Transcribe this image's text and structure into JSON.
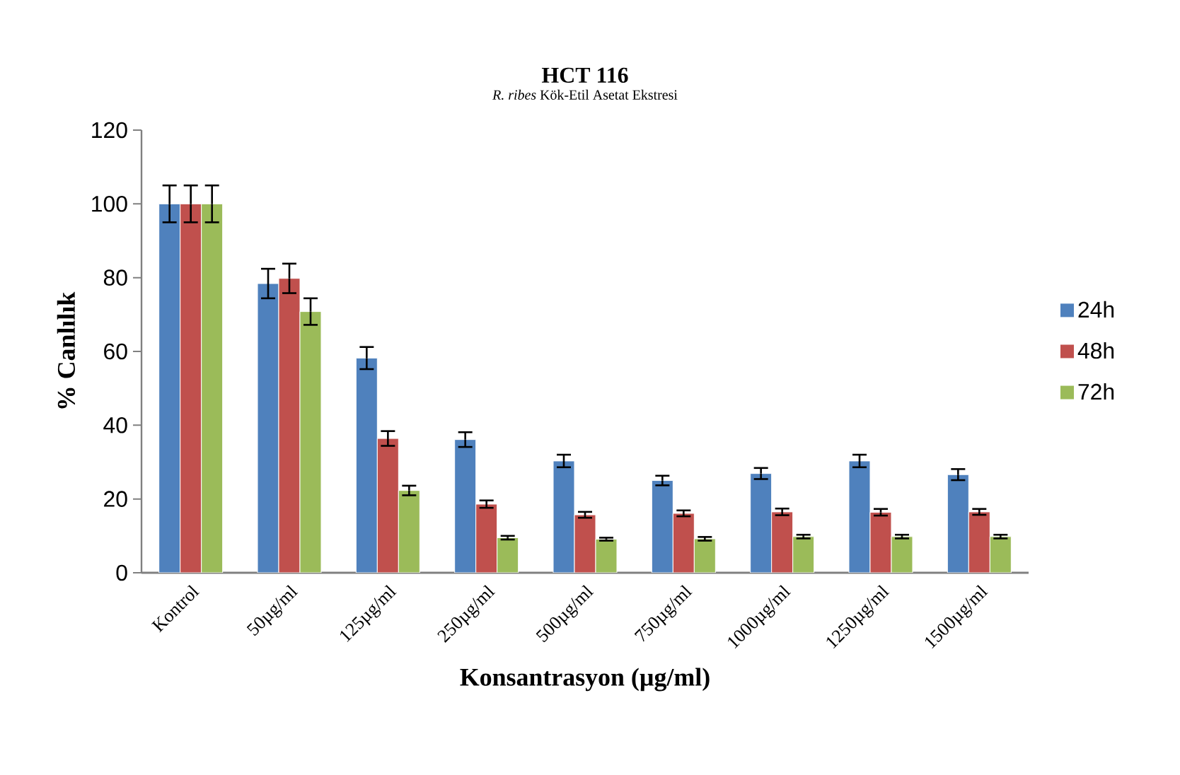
{
  "chart_data": {
    "type": "bar",
    "title": "HCT 116",
    "subtitle": "*R. ribes* Kök-Etil Asetat Ekstresi",
    "xlabel": "Konsantrasyon (µg/ml)",
    "ylabel": "% Canlılık",
    "categories": [
      "Kontrol",
      "50µg/ml",
      "125µg/ml",
      "250µg/ml",
      "500µg/ml",
      "750µg/ml",
      "1000µg/ml",
      "1250µg/ml",
      "1500µg/ml"
    ],
    "series": [
      {
        "name": "24h",
        "color": "#4f81bd",
        "values": [
          100,
          78.4,
          58.2,
          36.1,
          30.3,
          25.0,
          26.9,
          30.3,
          26.6
        ],
        "errors": [
          5,
          4,
          3,
          2,
          1.7,
          1.3,
          1.5,
          1.7,
          1.5
        ]
      },
      {
        "name": "48h",
        "color": "#c0504d",
        "values": [
          100,
          79.8,
          36.4,
          18.6,
          15.7,
          16.1,
          16.5,
          16.4,
          16.5
        ],
        "errors": [
          5,
          4,
          2,
          1,
          0.8,
          0.8,
          0.9,
          0.9,
          0.8
        ]
      },
      {
        "name": "72h",
        "color": "#9bbb59",
        "values": [
          100,
          70.8,
          22.3,
          9.5,
          9.1,
          9.2,
          9.8,
          9.8,
          9.8
        ],
        "errors": [
          5,
          3.6,
          1.3,
          0.5,
          0.4,
          0.5,
          0.5,
          0.5,
          0.5
        ]
      }
    ],
    "ylim": [
      0,
      120
    ],
    "yticks": [
      0,
      20,
      40,
      60,
      80,
      100,
      120
    ],
    "legend": "right",
    "grid": false
  }
}
